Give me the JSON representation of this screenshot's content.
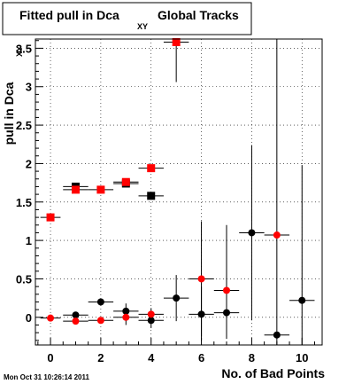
{
  "title": {
    "main": "Fitted pull in Dca",
    "sub": "XY",
    "suffix": "Global Tracks"
  },
  "timestamp": "Mon Oct 31 10:26:14 2011",
  "chart_data": {
    "type": "scatter",
    "xlabel": "No. of Bad Points",
    "ylabel": {
      "main": "pull in Dca",
      "sub": "XY"
    },
    "xlim": [
      -0.6,
      10.8
    ],
    "ylim": [
      -0.36,
      3.62
    ],
    "x_ticks": [
      0,
      2,
      4,
      6,
      8,
      10
    ],
    "y_ticks": [
      0,
      0.5,
      1,
      1.5,
      2,
      2.5,
      3,
      3.5
    ],
    "x_tick_labels": [
      "0",
      "2",
      "4",
      "6",
      "8",
      "10"
    ],
    "y_tick_labels": [
      "0",
      "0.5",
      "1",
      "1.5",
      "2",
      "2.5",
      "3",
      "3.5"
    ],
    "grid": true,
    "series": [
      {
        "marker": "square",
        "color": "#000000",
        "points": [
          {
            "x": 1,
            "y": 1.7,
            "xerr": 0.5,
            "ylo": 1.7,
            "yhi": 1.7
          },
          {
            "x": 3,
            "y": 1.74,
            "xerr": 0.5,
            "ylo": 1.74,
            "yhi": 1.74
          },
          {
            "x": 4,
            "y": 1.58,
            "xerr": 0.5,
            "ylo": 1.58,
            "yhi": 1.58
          }
        ]
      },
      {
        "marker": "square",
        "color": "#ff0000",
        "points": [
          {
            "x": 0,
            "y": 1.3,
            "xerr": 0.4,
            "ylo": 1.3,
            "yhi": 1.3
          },
          {
            "x": 1,
            "y": 1.66,
            "xerr": 0.5,
            "ylo": 1.66,
            "yhi": 1.66
          },
          {
            "x": 2,
            "y": 1.66,
            "xerr": 0.5,
            "ylo": 1.66,
            "yhi": 1.66
          },
          {
            "x": 3,
            "y": 1.76,
            "xerr": 0.5,
            "ylo": 1.76,
            "yhi": 1.76
          },
          {
            "x": 4,
            "y": 1.94,
            "xerr": 0.5,
            "ylo": 1.94,
            "yhi": 1.94
          },
          {
            "x": 5,
            "y": 3.58,
            "xerr": 0.5,
            "ylo": 3.06,
            "yhi": 3.62
          }
        ]
      },
      {
        "marker": "circle",
        "color": "#000000",
        "points": [
          {
            "x": 1,
            "y": 0.03,
            "xerr": 0.5,
            "ylo": 0.03,
            "yhi": 0.03
          },
          {
            "x": 2,
            "y": 0.2,
            "xerr": 0.5,
            "ylo": 0.2,
            "yhi": 0.2
          },
          {
            "x": 3,
            "y": 0.08,
            "xerr": 0.5,
            "ylo": -0.02,
            "yhi": 0.18
          },
          {
            "x": 4,
            "y": -0.04,
            "xerr": 0.5,
            "ylo": -0.14,
            "yhi": 0.06
          },
          {
            "x": 5,
            "y": 0.25,
            "xerr": 0.5,
            "ylo": -0.05,
            "yhi": 0.55
          },
          {
            "x": 6,
            "y": 0.04,
            "xerr": 0.5,
            "ylo": -0.3,
            "yhi": 0.4
          },
          {
            "x": 7,
            "y": 0.06,
            "xerr": 0.5,
            "ylo": -0.28,
            "yhi": 0.4
          },
          {
            "x": 8,
            "y": 1.1,
            "xerr": 0.5,
            "ylo": -0.04,
            "yhi": 2.24
          },
          {
            "x": 9,
            "y": -0.23,
            "xerr": 0.5,
            "ylo": -0.36,
            "yhi": 3.62
          },
          {
            "x": 10,
            "y": 0.22,
            "xerr": 0.5,
            "ylo": -0.36,
            "yhi": 1.98
          }
        ]
      },
      {
        "marker": "circle",
        "color": "#ff0000",
        "points": [
          {
            "x": 0,
            "y": -0.01,
            "xerr": 0.4,
            "ylo": -0.01,
            "yhi": -0.01
          },
          {
            "x": 1,
            "y": -0.05,
            "xerr": 0.5,
            "ylo": -0.05,
            "yhi": -0.05
          },
          {
            "x": 2,
            "y": -0.04,
            "xerr": 0.5,
            "ylo": -0.04,
            "yhi": -0.04
          },
          {
            "x": 3,
            "y": 0.0,
            "xerr": 0.5,
            "ylo": -0.1,
            "yhi": 0.1
          },
          {
            "x": 4,
            "y": 0.04,
            "xerr": 0.5,
            "ylo": -0.04,
            "yhi": 0.12
          },
          {
            "x": 6,
            "y": 0.5,
            "xerr": 0.5,
            "ylo": -0.25,
            "yhi": 1.25
          },
          {
            "x": 7,
            "y": 0.35,
            "xerr": 0.5,
            "ylo": -0.27,
            "yhi": 1.2
          },
          {
            "x": 9,
            "y": 1.07,
            "xerr": 0.5,
            "ylo": 1.07,
            "yhi": 1.07
          }
        ]
      }
    ]
  }
}
